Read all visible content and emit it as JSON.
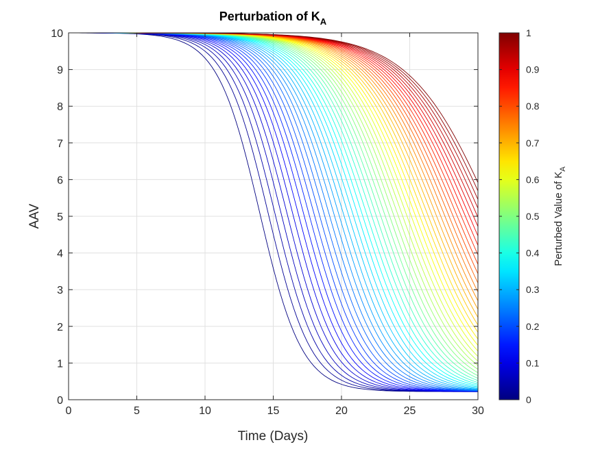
{
  "chart_data": {
    "type": "line",
    "title": "Perturbation of K",
    "title_subscript": "A",
    "xlabel": "Time (Days)",
    "ylabel": "AAV",
    "xlim": [
      0,
      30
    ],
    "ylim": [
      0,
      10
    ],
    "xticks": [
      "0",
      "5",
      "10",
      "15",
      "20",
      "25",
      "30"
    ],
    "yticks": [
      "0",
      "1",
      "2",
      "3",
      "4",
      "5",
      "6",
      "7",
      "8",
      "9",
      "10"
    ],
    "grid": true,
    "colormap": "jet",
    "colorbar": {
      "label": "Perturbed Value of K",
      "label_subscript": "A",
      "range": [
        0,
        1
      ],
      "ticks": [
        "0",
        "0.1",
        "0.2",
        "0.3",
        "0.4",
        "0.5",
        "0.6",
        "0.7",
        "0.8",
        "0.9",
        "1"
      ]
    },
    "series_family": {
      "count": 51,
      "parameter": "K_A",
      "parameter_range": [
        0,
        1
      ],
      "initial_value": 10,
      "midpoint_day_range": [
        14.0,
        31.0
      ],
      "final_value_range": [
        0.22,
        5.73
      ]
    },
    "series": [
      {
        "K_A": 0.0,
        "x": [
          0,
          5,
          10,
          12,
          14,
          16,
          18,
          20,
          25,
          30
        ],
        "y": [
          10.0,
          10.0,
          9.35,
          7.6,
          5.1,
          2.55,
          1.1,
          0.52,
          0.25,
          0.22
        ]
      },
      {
        "K_A": 0.5,
        "x": [
          0,
          5,
          10,
          15,
          18,
          20,
          22,
          25,
          30
        ],
        "y": [
          10.0,
          10.0,
          9.95,
          9.3,
          7.3,
          5.4,
          3.6,
          1.7,
          0.65
        ]
      },
      {
        "K_A": 1.0,
        "x": [
          0,
          5,
          10,
          15,
          20,
          25,
          28,
          30
        ],
        "y": [
          10.0,
          10.0,
          10.0,
          9.95,
          9.55,
          8.1,
          6.8,
          5.73
        ]
      }
    ],
    "colors": {
      "axes": "#262626",
      "grid": "#e0e0e0",
      "background": "#ffffff"
    }
  }
}
